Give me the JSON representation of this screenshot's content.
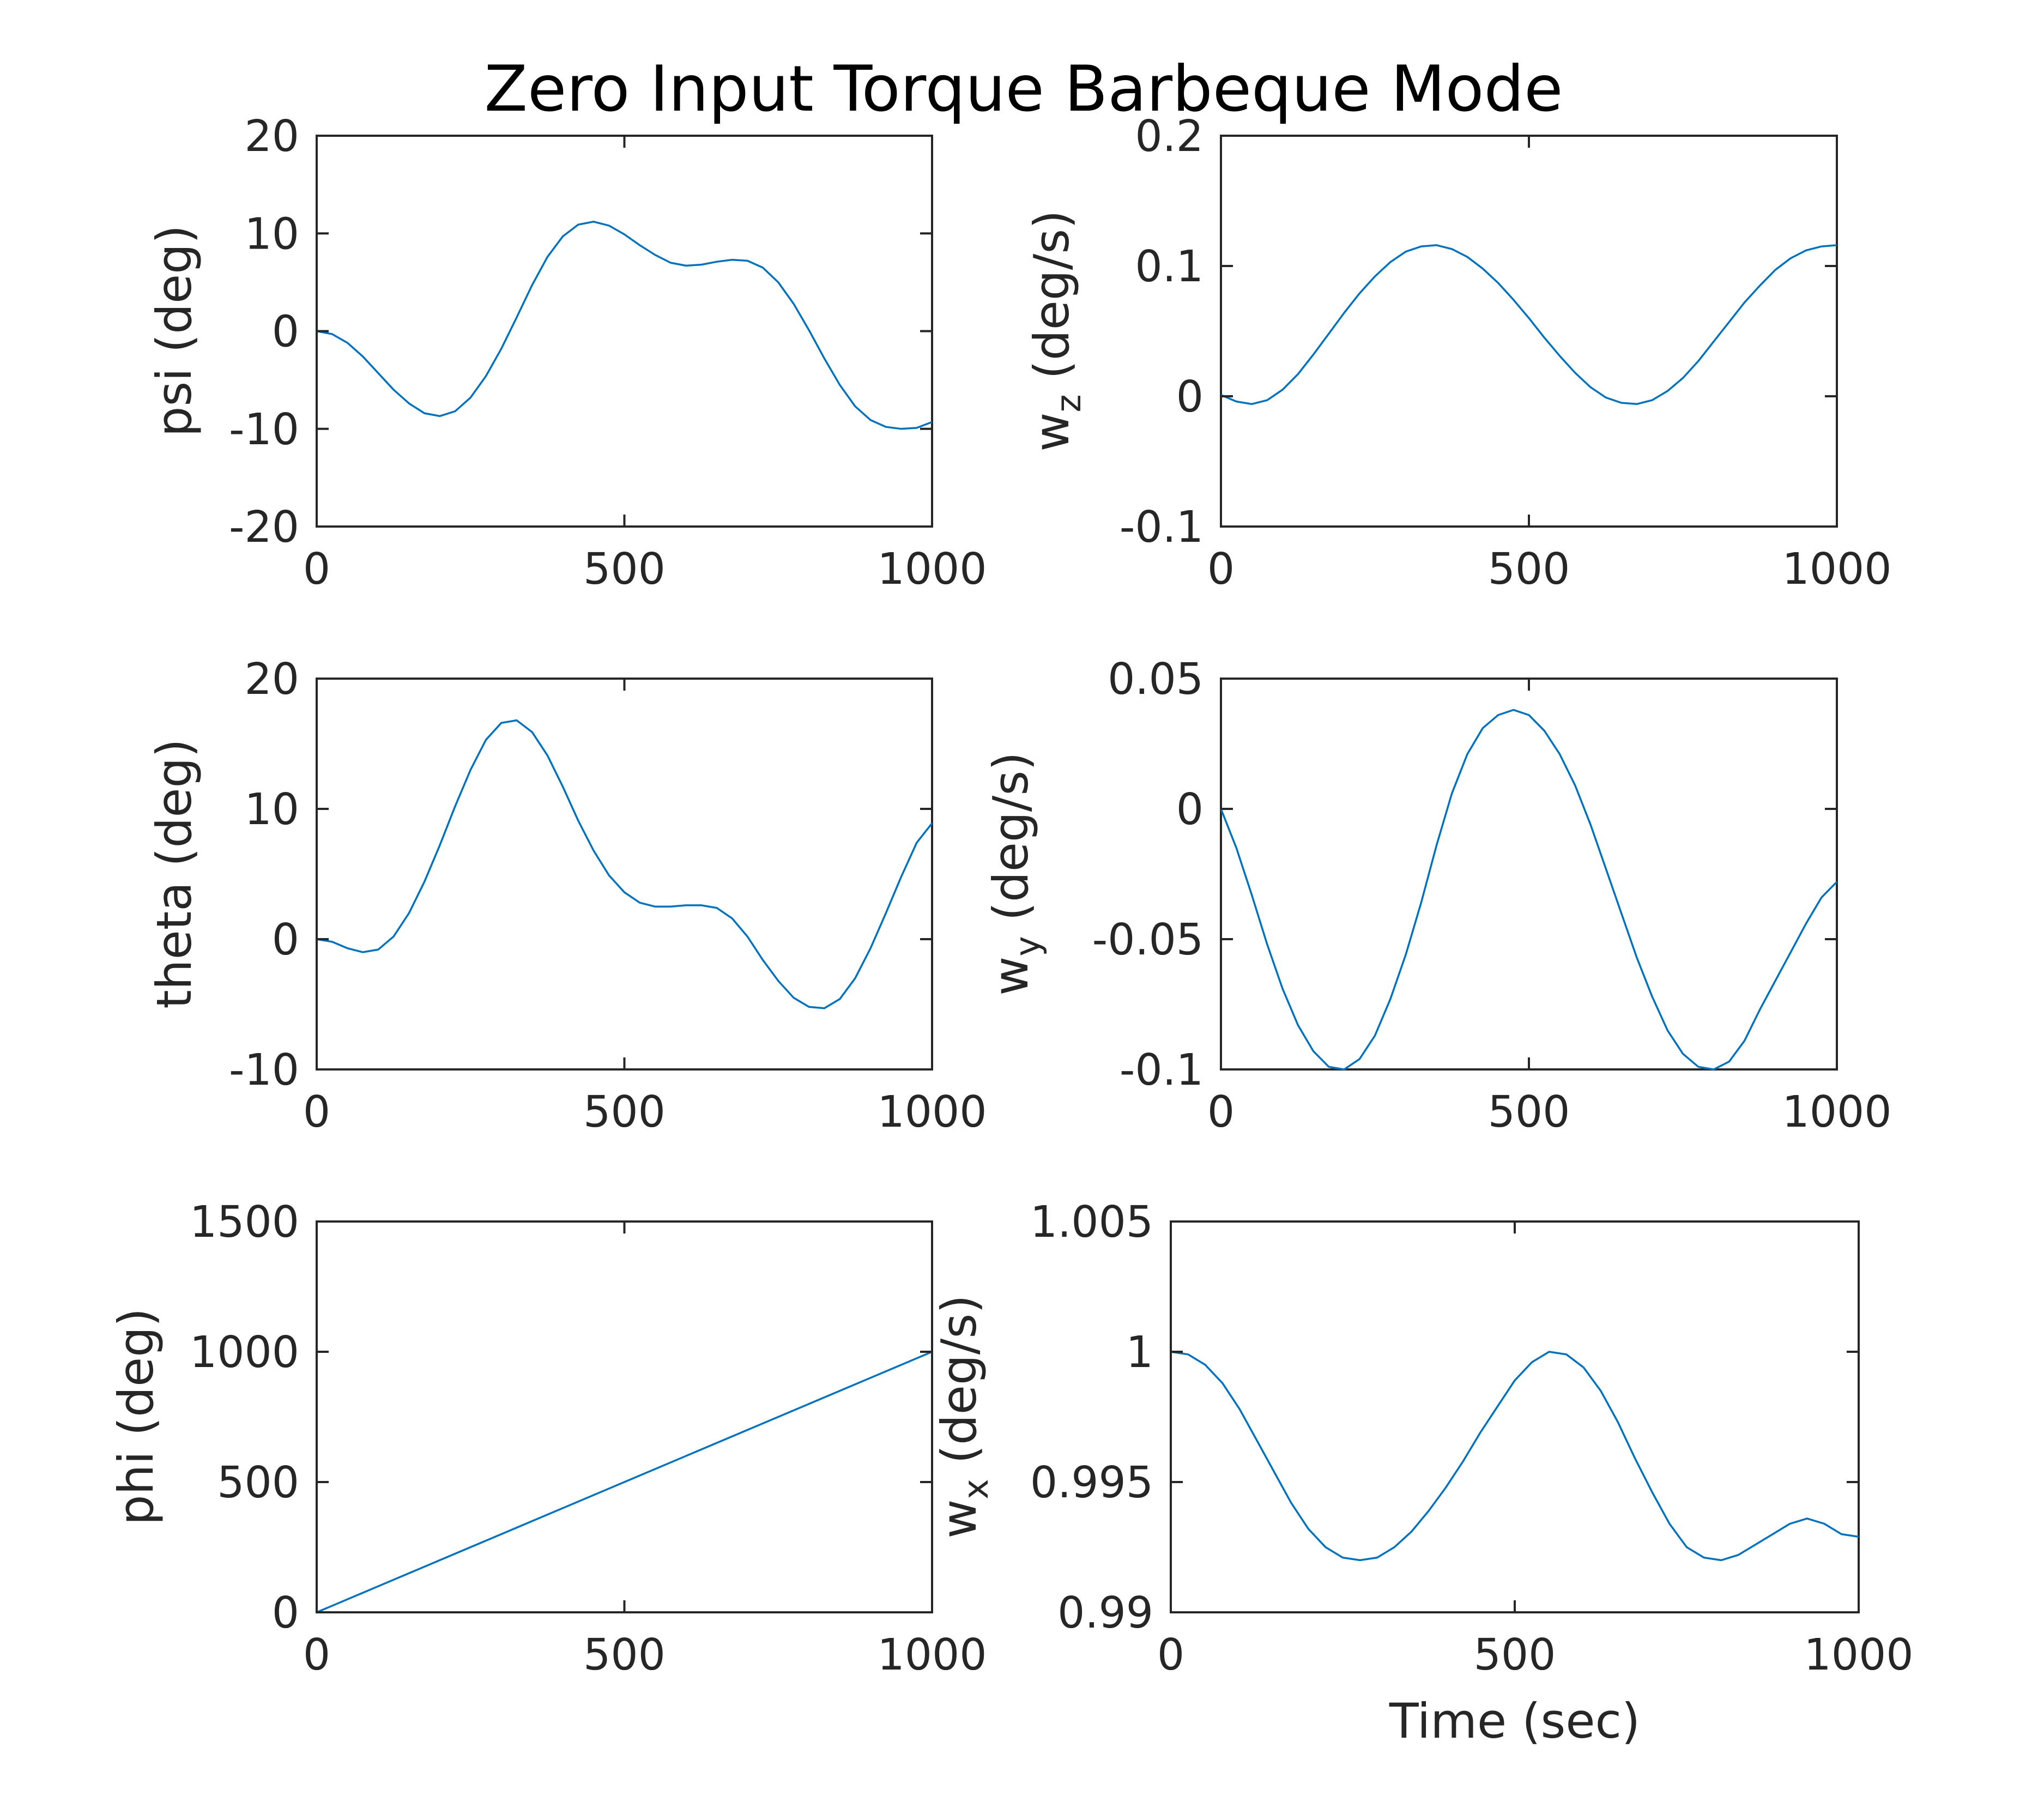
{
  "figure": {
    "title": "Zero Input Torque Barbeque Mode",
    "line_color": "#0072BD",
    "axis_color": "#262626"
  },
  "chart_data": [
    {
      "type": "line",
      "id": "psi",
      "ylabel": "psi (deg)",
      "xlabel": "",
      "xlim": [
        0,
        1000
      ],
      "ylim": [
        -20,
        20
      ],
      "xticks": [
        0,
        500,
        1000
      ],
      "xtick_labels": [
        "0",
        "500",
        "1000"
      ],
      "yticks": [
        -20,
        -10,
        0,
        10,
        20
      ],
      "ytick_labels": [
        "-20",
        "-10",
        "0",
        "10",
        "20"
      ],
      "grid": false,
      "x": [
        0,
        25,
        50,
        75,
        100,
        125,
        150,
        175,
        200,
        225,
        250,
        275,
        300,
        325,
        350,
        375,
        400,
        425,
        450,
        475,
        500,
        525,
        550,
        575,
        600,
        625,
        650,
        675,
        700,
        725,
        750,
        775,
        800,
        825,
        850,
        875,
        900,
        925,
        950,
        975,
        1000
      ],
      "y": [
        0,
        -0.3,
        -1.2,
        -2.6,
        -4.3,
        -6.0,
        -7.4,
        -8.4,
        -8.7,
        -8.2,
        -6.8,
        -4.6,
        -1.8,
        1.4,
        4.7,
        7.6,
        9.7,
        10.9,
        11.2,
        10.8,
        9.9,
        8.8,
        7.8,
        7.0,
        6.7,
        6.8,
        7.1,
        7.3,
        7.2,
        6.5,
        5.0,
        2.8,
        0.1,
        -2.8,
        -5.5,
        -7.7,
        -9.1,
        -9.8,
        -10.0,
        -9.9,
        -9.3
      ]
    },
    {
      "type": "line",
      "id": "wz",
      "ylabel_main": "w",
      "ylabel_sub": "z",
      "ylabel_rest": " (deg/s)",
      "xlabel": "",
      "xlim": [
        0,
        1000
      ],
      "ylim": [
        -0.1,
        0.2
      ],
      "xticks": [
        0,
        500,
        1000
      ],
      "xtick_labels": [
        "0",
        "500",
        "1000"
      ],
      "yticks": [
        -0.1,
        0,
        0.1,
        0.2
      ],
      "ytick_labels": [
        "-0.1",
        "0",
        "0.1",
        "0.2"
      ],
      "grid": false,
      "x": [
        0,
        25,
        50,
        75,
        100,
        125,
        150,
        175,
        200,
        225,
        250,
        275,
        300,
        325,
        350,
        375,
        400,
        425,
        450,
        475,
        500,
        525,
        550,
        575,
        600,
        625,
        650,
        675,
        700,
        725,
        750,
        775,
        800,
        825,
        850,
        875,
        900,
        925,
        950,
        975,
        1000
      ],
      "y": [
        0.001,
        -0.004,
        -0.006,
        -0.003,
        0.005,
        0.017,
        0.032,
        0.048,
        0.064,
        0.079,
        0.092,
        0.103,
        0.111,
        0.115,
        0.116,
        0.113,
        0.107,
        0.098,
        0.087,
        0.074,
        0.06,
        0.045,
        0.031,
        0.018,
        0.007,
        -0.001,
        -0.005,
        -0.006,
        -0.003,
        0.004,
        0.014,
        0.027,
        0.042,
        0.057,
        0.072,
        0.085,
        0.097,
        0.106,
        0.112,
        0.115,
        0.116
      ]
    },
    {
      "type": "line",
      "id": "theta",
      "ylabel": "theta (deg)",
      "xlabel": "",
      "xlim": [
        0,
        1000
      ],
      "ylim": [
        -10,
        20
      ],
      "xticks": [
        0,
        500,
        1000
      ],
      "xtick_labels": [
        "0",
        "500",
        "1000"
      ],
      "yticks": [
        -10,
        0,
        10,
        20
      ],
      "ytick_labels": [
        "-10",
        "0",
        "10",
        "20"
      ],
      "grid": false,
      "x": [
        0,
        25,
        50,
        75,
        100,
        125,
        150,
        175,
        200,
        225,
        250,
        275,
        300,
        325,
        350,
        375,
        400,
        425,
        450,
        475,
        500,
        525,
        550,
        575,
        600,
        625,
        650,
        675,
        700,
        725,
        750,
        775,
        800,
        825,
        850,
        875,
        900,
        925,
        950,
        975,
        1000
      ],
      "y": [
        0,
        -0.2,
        -0.7,
        -1.0,
        -0.8,
        0.2,
        2.0,
        4.4,
        7.2,
        10.2,
        13.0,
        15.3,
        16.6,
        16.8,
        15.9,
        14.1,
        11.7,
        9.1,
        6.8,
        4.9,
        3.6,
        2.8,
        2.5,
        2.5,
        2.6,
        2.6,
        2.4,
        1.6,
        0.2,
        -1.6,
        -3.2,
        -4.5,
        -5.2,
        -5.3,
        -4.6,
        -3.0,
        -0.7,
        2.0,
        4.8,
        7.4,
        8.9
      ]
    },
    {
      "type": "line",
      "id": "wy",
      "ylabel_main": "w",
      "ylabel_sub": "y",
      "ylabel_rest": " (deg/s)",
      "xlabel": "",
      "xlim": [
        0,
        1000
      ],
      "ylim": [
        -0.1,
        0.05
      ],
      "xticks": [
        0,
        500,
        1000
      ],
      "xtick_labels": [
        "0",
        "500",
        "1000"
      ],
      "yticks": [
        -0.1,
        -0.05,
        0,
        0.05
      ],
      "ytick_labels": [
        "-0.1",
        "-0.05",
        "0",
        "0.05"
      ],
      "grid": false,
      "x": [
        0,
        25,
        50,
        75,
        100,
        125,
        150,
        175,
        200,
        225,
        250,
        275,
        300,
        325,
        350,
        375,
        400,
        425,
        450,
        475,
        500,
        525,
        550,
        575,
        600,
        625,
        650,
        675,
        700,
        725,
        750,
        775,
        800,
        825,
        850,
        875,
        900,
        925,
        950,
        975,
        1000
      ],
      "y": [
        0,
        -0.015,
        -0.033,
        -0.052,
        -0.069,
        -0.083,
        -0.093,
        -0.099,
        -0.1,
        -0.096,
        -0.087,
        -0.073,
        -0.056,
        -0.036,
        -0.014,
        0.006,
        0.021,
        0.031,
        0.036,
        0.038,
        0.036,
        0.03,
        0.021,
        0.009,
        -0.006,
        -0.023,
        -0.04,
        -0.057,
        -0.072,
        -0.085,
        -0.094,
        -0.099,
        -0.1,
        -0.097,
        -0.089,
        -0.077,
        -0.066,
        -0.055,
        -0.044,
        -0.034,
        -0.028
      ]
    },
    {
      "type": "line",
      "id": "phi",
      "ylabel": "phi (deg)",
      "xlabel": "",
      "xlim": [
        0,
        1000
      ],
      "ylim": [
        0,
        1500
      ],
      "xticks": [
        0,
        500,
        1000
      ],
      "xtick_labels": [
        "0",
        "500",
        "1000"
      ],
      "yticks": [
        0,
        500,
        1000,
        1500
      ],
      "ytick_labels": [
        "0",
        "500",
        "1000",
        "1500"
      ],
      "grid": false,
      "x": [
        0,
        100,
        200,
        300,
        400,
        500,
        600,
        700,
        800,
        900,
        1000
      ],
      "y": [
        0,
        100,
        200,
        300,
        400,
        500,
        600,
        700,
        800,
        900,
        1000
      ]
    },
    {
      "type": "line",
      "id": "wx",
      "ylabel_main": "w",
      "ylabel_sub": "x",
      "ylabel_rest": " (deg/s)",
      "xlabel": "Time (sec)",
      "xlim": [
        0,
        1000
      ],
      "ylim": [
        0.99,
        1.005
      ],
      "xticks": [
        0,
        500,
        1000
      ],
      "xtick_labels": [
        "0",
        "500",
        "1000"
      ],
      "yticks": [
        0.99,
        0.995,
        1,
        1.005
      ],
      "ytick_labels": [
        "0.99",
        "0.995",
        "1",
        "1.005"
      ],
      "grid": false,
      "x": [
        0,
        25,
        50,
        75,
        100,
        125,
        150,
        175,
        200,
        225,
        250,
        275,
        300,
        325,
        350,
        375,
        400,
        425,
        450,
        475,
        500,
        525,
        550,
        575,
        600,
        625,
        650,
        675,
        700,
        725,
        750,
        775,
        800,
        825,
        850,
        875,
        900,
        925,
        950,
        975,
        1000
      ],
      "y": [
        1.0,
        0.9999,
        0.9995,
        0.9988,
        0.9978,
        0.9966,
        0.9954,
        0.9942,
        0.9932,
        0.9925,
        0.9921,
        0.992,
        0.9921,
        0.9925,
        0.9931,
        0.9939,
        0.9948,
        0.9958,
        0.9969,
        0.9979,
        0.9989,
        0.9996,
        1.0,
        0.9999,
        0.9994,
        0.9985,
        0.9973,
        0.9959,
        0.9946,
        0.9934,
        0.9925,
        0.9921,
        0.992,
        0.9922,
        0.9926,
        0.993,
        0.9934,
        0.9936,
        0.9934,
        0.993,
        0.9929
      ]
    }
  ]
}
